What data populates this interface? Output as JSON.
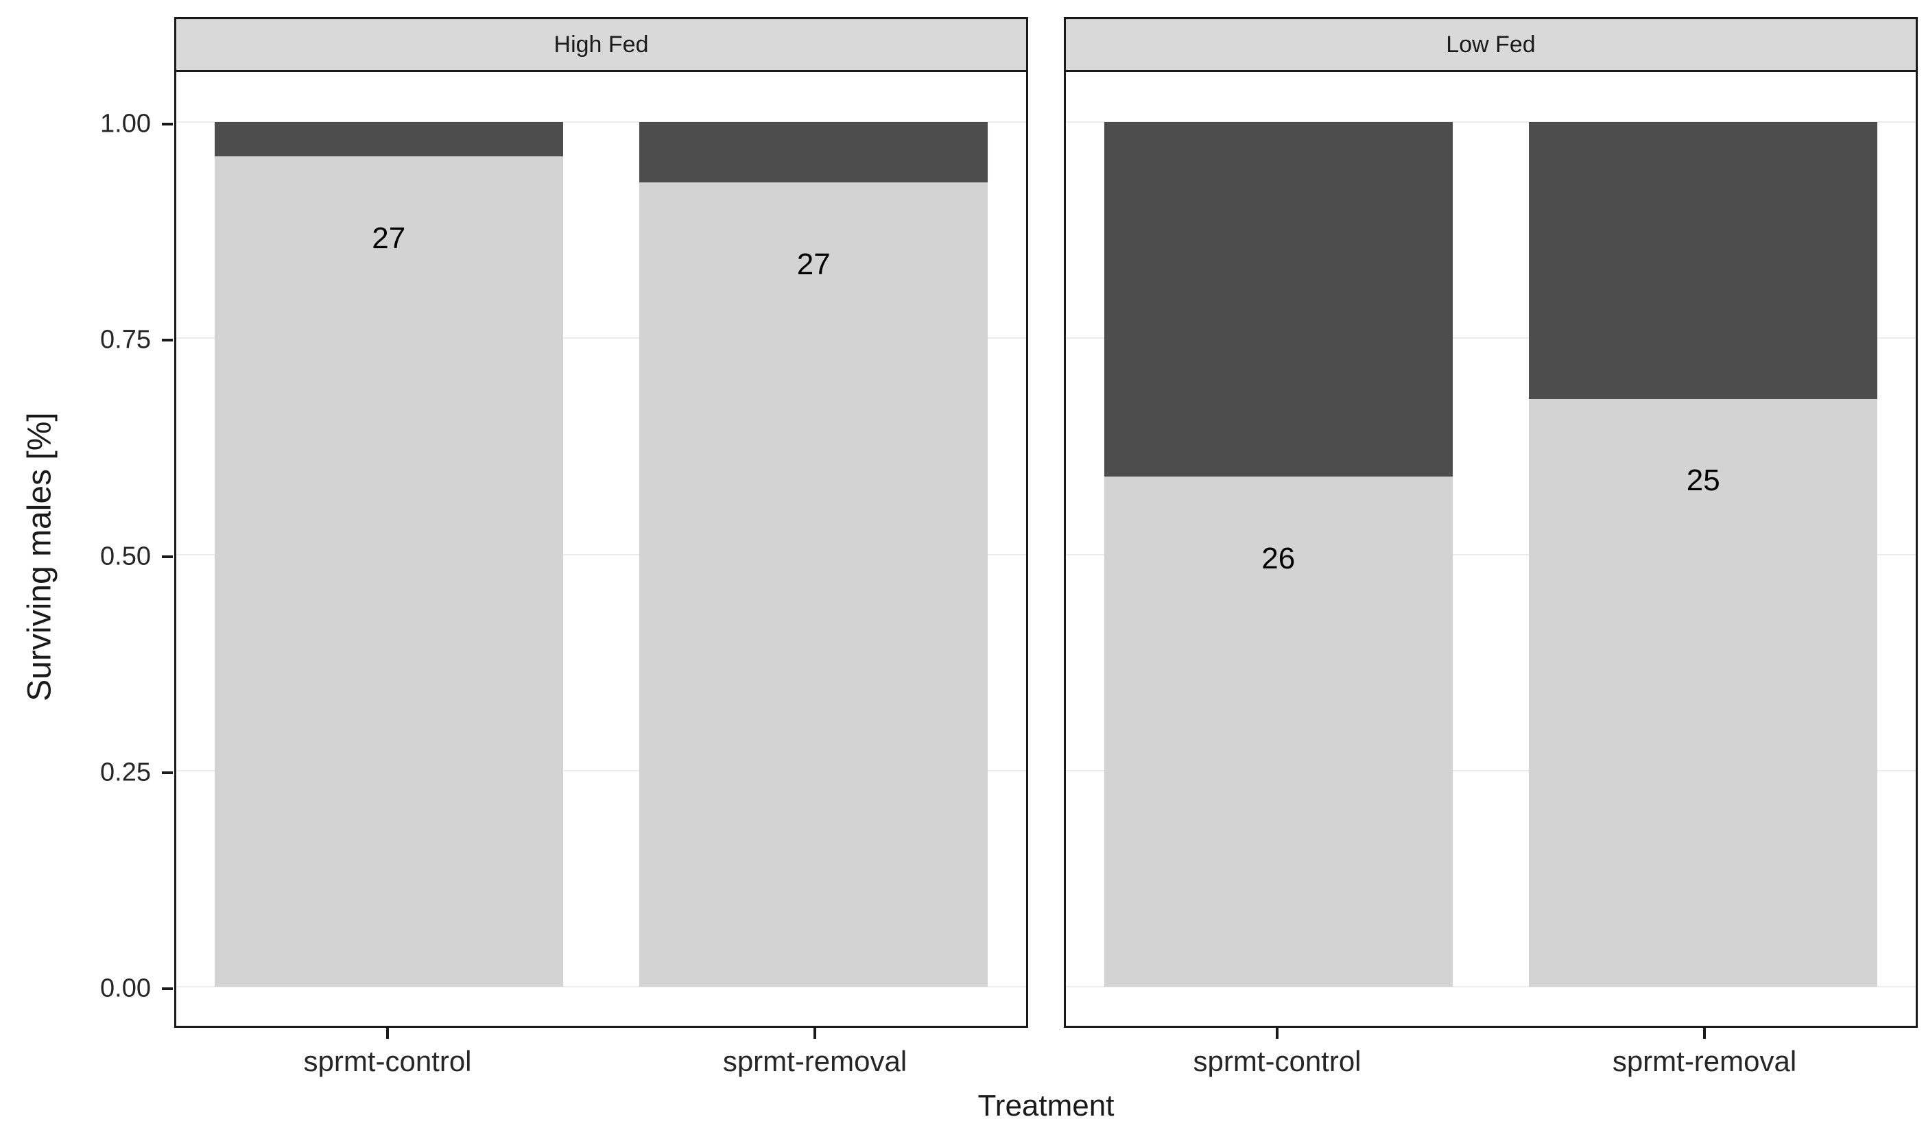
{
  "figure": {
    "y_ticks": [
      "1.00",
      "0.75",
      "0.50",
      "0.25",
      "0.00"
    ],
    "colors": {
      "surviving": "#d3d3d3",
      "dead": "#4d4d4d",
      "strip_bg": "#d9d9d9",
      "panel_border": "#1a1a1a",
      "grid": "#ececec"
    }
  },
  "chart_data": {
    "type": "bar",
    "stacked": true,
    "title": "",
    "xlabel": "Treatment",
    "ylabel": "Surviving males [%]",
    "ylim": [
      0,
      1
    ],
    "y_tick_values": [
      0,
      0.25,
      0.5,
      0.75,
      1.0
    ],
    "legend": "none",
    "grid": "horizontal-major",
    "facets": [
      {
        "label": "High Fed",
        "bars": [
          {
            "category": "sprmt-control",
            "surviving_fraction": 0.96,
            "dead_fraction": 0.04,
            "count_label": "27"
          },
          {
            "category": "sprmt-removal",
            "surviving_fraction": 0.93,
            "dead_fraction": 0.07,
            "count_label": "27"
          }
        ]
      },
      {
        "label": "Low Fed",
        "bars": [
          {
            "category": "sprmt-control",
            "surviving_fraction": 0.59,
            "dead_fraction": 0.41,
            "count_label": "26"
          },
          {
            "category": "sprmt-removal",
            "surviving_fraction": 0.68,
            "dead_fraction": 0.32,
            "count_label": "25"
          }
        ]
      }
    ]
  }
}
